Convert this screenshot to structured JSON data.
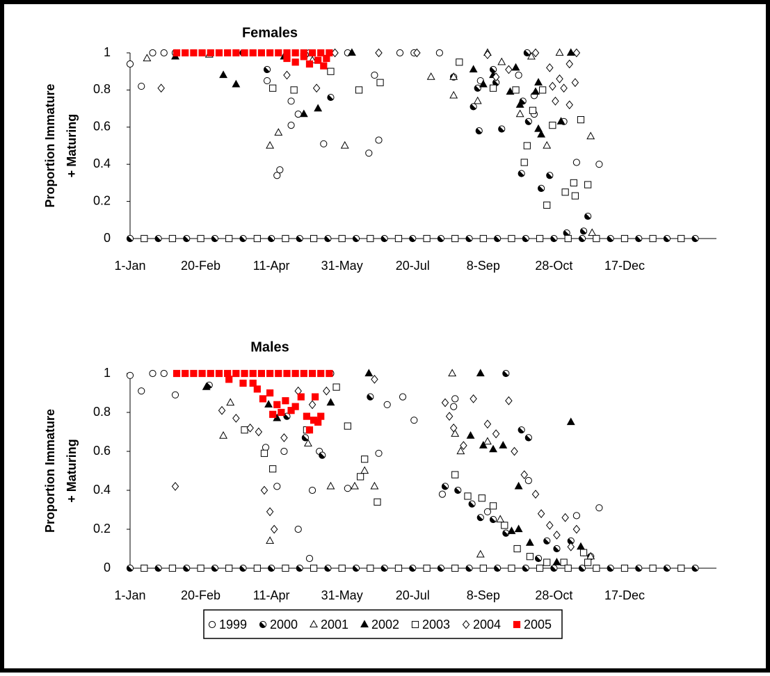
{
  "chart_data": [
    {
      "type": "scatter",
      "title": "Females",
      "ylabel": [
        "Proportion Immature",
        "+ Maturing"
      ],
      "xlim": [
        1,
        416
      ],
      "ylim": [
        0,
        1
      ],
      "yticks": [
        0,
        0.2,
        0.4,
        0.6,
        0.8,
        1
      ],
      "xticks": [
        {
          "value": 1,
          "label": "1-Jan"
        },
        {
          "value": 51,
          "label": "20-Feb"
        },
        {
          "value": 101,
          "label": "11-Apr"
        },
        {
          "value": 151,
          "label": "31-May"
        },
        {
          "value": 201,
          "label": "20-Jul"
        },
        {
          "value": 251,
          "label": "8-Sep"
        },
        {
          "value": 301,
          "label": "28-Oct"
        },
        {
          "value": 351,
          "label": "17-Dec"
        }
      ],
      "series": [
        {
          "name": "1999",
          "color": "#000000",
          "marker": "circle",
          "filled": false,
          "x": [
            1,
            9,
            17,
            25,
            33,
            98,
            105,
            107,
            115,
            115,
            120,
            138,
            170,
            177,
            174,
            192,
            202,
            220,
            249,
            276,
            287,
            287,
            308,
            317,
            333,
            128,
            155
          ],
          "y": [
            0.94,
            0.82,
            1,
            1,
            1,
            0.85,
            0.34,
            0.37,
            0.74,
            0.61,
            0.67,
            0.51,
            0.46,
            0.53,
            0.88,
            1,
            1,
            1,
            0.85,
            0.88,
            0.77,
            0.67,
            0.63,
            0.41,
            0.4,
            1,
            1
          ]
        },
        {
          "name": "2000",
          "color": "#000000",
          "marker": "half",
          "filled": true,
          "x": [
            98,
            143,
            279,
            283,
            278,
            292,
            310,
            260,
            248,
            264,
            247,
            258,
            298,
            322,
            325,
            282,
            244,
            230,
            81,
            125,
            1,
            21,
            41,
            61,
            81,
            101,
            121,
            141,
            161,
            181,
            201,
            221,
            241,
            261,
            281,
            301,
            321,
            341,
            361,
            381,
            401
          ],
          "y": [
            0.91,
            0.76,
            0.74,
            0.63,
            0.35,
            0.27,
            0.03,
            0.84,
            0.58,
            0.59,
            0.81,
            0.91,
            0.34,
            0.04,
            0.12,
            1,
            0.71,
            0.87,
            1,
            0.99,
            0,
            0,
            0,
            0,
            0,
            0,
            0,
            0,
            0,
            0,
            0,
            0,
            0,
            0,
            0,
            0,
            0,
            0,
            0,
            0,
            0
          ]
        },
        {
          "name": "2001",
          "color": "#000000",
          "marker": "triangle",
          "filled": false,
          "x": [
            13,
            100,
            106,
            153,
            230,
            247,
            277,
            296,
            327,
            230,
            254,
            264,
            305,
            328,
            57,
            130,
            214,
            285
          ],
          "y": [
            0.97,
            0.5,
            0.57,
            0.5,
            0.77,
            0.74,
            0.67,
            0.5,
            0.55,
            0.87,
            1,
            0.95,
            1,
            0.03,
            0.99,
            0.96,
            0.87,
            0.98
          ]
        },
        {
          "name": "2002",
          "color": "#000000",
          "marker": "triangle",
          "filled": true,
          "x": [
            33,
            67,
            76,
            110,
            124,
            134,
            158,
            244,
            251,
            258,
            270,
            274,
            277,
            290,
            290,
            292,
            306,
            313,
            288
          ],
          "y": [
            0.98,
            0.88,
            0.83,
            0.98,
            0.67,
            0.7,
            1,
            0.91,
            0.83,
            0.88,
            0.79,
            0.92,
            0.72,
            0.84,
            0.59,
            0.56,
            0.63,
            1,
            0.79
          ]
        },
        {
          "name": "2003",
          "color": "#000000",
          "marker": "square",
          "filled": false,
          "x": [
            102,
            117,
            143,
            163,
            178,
            234,
            258,
            274,
            282,
            280,
            286,
            293,
            296,
            309,
            315,
            316,
            320,
            325,
            300,
            11,
            31,
            51,
            71,
            91,
            111,
            131,
            151,
            171,
            191,
            211,
            231,
            251,
            271,
            291,
            311,
            331,
            351,
            371,
            391
          ],
          "y": [
            0.81,
            0.8,
            0.9,
            0.8,
            0.84,
            0.95,
            0.81,
            0.8,
            0.5,
            0.41,
            0.69,
            0.8,
            0.18,
            0.25,
            0.3,
            0.23,
            0.64,
            0.29,
            0.61,
            0,
            0,
            0,
            0,
            0,
            0,
            0,
            0,
            0,
            0,
            0,
            0,
            0,
            0,
            0,
            0,
            0,
            0,
            0,
            0
          ]
        },
        {
          "name": "2004",
          "color": "#000000",
          "marker": "diamond",
          "filled": false,
          "x": [
            23,
            112,
            133,
            146,
            177,
            204,
            254,
            260,
            269,
            288,
            298,
            300,
            305,
            312,
            317,
            308,
            316,
            302,
            312
          ],
          "y": [
            0.81,
            0.88,
            0.81,
            1,
            1,
            1,
            0.99,
            0.87,
            0.91,
            1,
            0.92,
            0.82,
            0.86,
            0.94,
            1,
            0.81,
            0.84,
            0.74,
            0.72
          ]
        },
        {
          "name": "2005",
          "color": "#ff0000",
          "marker": "square",
          "filled": true,
          "x": [
            34,
            40,
            46,
            52,
            58,
            64,
            70,
            76,
            82,
            88,
            94,
            100,
            106,
            112,
            118,
            124,
            130,
            136,
            142,
            112,
            118,
            124,
            128,
            134,
            138,
            140
          ],
          "y": [
            1,
            1,
            1,
            1,
            1,
            1,
            1,
            1,
            1,
            1,
            1,
            1,
            1,
            1,
            1,
            1,
            1,
            1,
            1,
            0.97,
            0.95,
            0.98,
            0.94,
            0.96,
            0.93,
            0.97
          ]
        }
      ]
    },
    {
      "type": "scatter",
      "title": "Males",
      "ylabel": [
        "Proportion Immature",
        "+ Maturing"
      ],
      "xlim": [
        1,
        416
      ],
      "ylim": [
        0,
        1
      ],
      "yticks": [
        0,
        0.2,
        0.4,
        0.6,
        0.8,
        1
      ],
      "xticks": [
        {
          "value": 1,
          "label": "1-Jan"
        },
        {
          "value": 51,
          "label": "20-Feb"
        },
        {
          "value": 101,
          "label": "11-Apr"
        },
        {
          "value": 151,
          "label": "31-May"
        },
        {
          "value": 201,
          "label": "20-Jul"
        },
        {
          "value": 251,
          "label": "8-Sep"
        },
        {
          "value": 301,
          "label": "28-Oct"
        },
        {
          "value": 351,
          "label": "17-Dec"
        }
      ],
      "series": [
        {
          "name": "1999",
          "color": "#000000",
          "marker": "circle",
          "filled": false,
          "x": [
            1,
            9,
            17,
            25,
            33,
            97,
            110,
            105,
            120,
            128,
            130,
            135,
            155,
            177,
            183,
            194,
            202,
            222,
            230,
            231,
            254,
            283,
            317,
            333
          ],
          "y": [
            0.99,
            0.91,
            1,
            1,
            0.89,
            0.62,
            0.6,
            0.42,
            0.2,
            0.05,
            0.4,
            0.6,
            0.41,
            0.59,
            0.84,
            0.88,
            0.76,
            0.38,
            0.83,
            0.87,
            0.29,
            0.45,
            0.27,
            0.31
          ]
        },
        {
          "name": "2000",
          "color": "#000000",
          "marker": "half",
          "filled": true,
          "x": [
            57,
            112,
            125,
            137,
            143,
            171,
            233,
            243,
            249,
            258,
            267,
            278,
            283,
            290,
            296,
            303,
            313,
            322,
            327,
            224,
            267,
            1,
            21,
            41,
            61,
            81,
            101,
            121,
            141,
            161,
            181,
            201,
            221,
            241,
            261,
            281,
            301,
            321,
            341,
            361,
            381,
            401
          ],
          "y": [
            0.94,
            0.78,
            0.67,
            0.58,
            1,
            0.88,
            0.4,
            0.33,
            0.26,
            0.25,
            0.18,
            0.71,
            0.67,
            0.05,
            0.14,
            0.1,
            0.14,
            0.08,
            0.06,
            0.42,
            1,
            0,
            0,
            0,
            0,
            0,
            0,
            0,
            0,
            0,
            0,
            0,
            0,
            0,
            0,
            0,
            0,
            0,
            0,
            0,
            0,
            0
          ]
        },
        {
          "name": "2001",
          "color": "#000000",
          "marker": "triangle",
          "filled": false,
          "x": [
            67,
            72,
            100,
            127,
            143,
            160,
            167,
            174,
            229,
            235,
            249,
            263,
            254,
            231,
            327
          ],
          "y": [
            0.68,
            0.85,
            0.14,
            0.64,
            0.42,
            0.42,
            0.5,
            0.42,
            1,
            0.6,
            0.07,
            0.25,
            0.65,
            0.69,
            0.06
          ]
        },
        {
          "name": "2002",
          "color": "#000000",
          "marker": "triangle",
          "filled": true,
          "x": [
            55,
            99,
            105,
            143,
            170,
            242,
            251,
            258,
            265,
            271,
            276,
            276,
            284,
            303,
            313,
            320,
            249
          ],
          "y": [
            0.93,
            0.84,
            0.77,
            0.85,
            1,
            0.68,
            0.63,
            0.61,
            0.63,
            0.19,
            0.42,
            0.2,
            0.13,
            0.03,
            0.75,
            0.11,
            1
          ]
        },
        {
          "name": "2003",
          "color": "#000000",
          "marker": "square",
          "filled": false,
          "x": [
            82,
            96,
            102,
            126,
            147,
            155,
            164,
            167,
            176,
            231,
            240,
            250,
            258,
            266,
            275,
            284,
            296,
            308,
            322,
            325,
            11,
            31,
            51,
            71,
            91,
            111,
            131,
            151,
            171,
            191,
            211,
            231,
            251,
            271,
            291,
            311,
            331,
            351,
            371,
            391
          ],
          "y": [
            0.71,
            0.59,
            0.51,
            0.71,
            0.93,
            0.73,
            0.47,
            0.56,
            0.34,
            0.48,
            0.37,
            0.36,
            0.32,
            0.22,
            0.1,
            0.06,
            0.03,
            0.03,
            0.08,
            0.03,
            0,
            0,
            0,
            0,
            0,
            0,
            0,
            0,
            0,
            0,
            0,
            0,
            0,
            0,
            0,
            0,
            0,
            0,
            0,
            0
          ]
        },
        {
          "name": "2004",
          "color": "#000000",
          "marker": "diamond",
          "filled": false,
          "x": [
            33,
            66,
            76,
            86,
            92,
            96,
            100,
            103,
            110,
            120,
            130,
            140,
            174,
            224,
            227,
            230,
            237,
            244,
            254,
            260,
            269,
            273,
            280,
            288,
            292,
            298,
            303,
            309,
            313,
            317
          ],
          "y": [
            0.42,
            0.81,
            0.77,
            0.72,
            0.7,
            0.4,
            0.29,
            0.2,
            0.67,
            0.91,
            0.84,
            0.91,
            0.97,
            0.85,
            0.78,
            0.72,
            0.63,
            0.87,
            0.74,
            0.69,
            0.86,
            0.6,
            0.48,
            0.38,
            0.28,
            0.22,
            0.17,
            0.26,
            0.11,
            0.2
          ]
        },
        {
          "name": "2005",
          "color": "#ff0000",
          "marker": "square",
          "filled": true,
          "x": [
            34,
            40,
            46,
            52,
            58,
            64,
            70,
            76,
            82,
            88,
            94,
            100,
            106,
            112,
            118,
            124,
            130,
            136,
            142,
            91,
            95,
            100,
            102,
            105,
            108,
            111,
            115,
            118,
            122,
            126,
            128,
            131,
            134,
            136,
            132,
            71,
            81,
            88
          ],
          "y": [
            1,
            1,
            1,
            1,
            1,
            1,
            1,
            1,
            1,
            1,
            1,
            1,
            1,
            1,
            1,
            1,
            1,
            1,
            1,
            0.92,
            0.87,
            0.9,
            0.79,
            0.84,
            0.8,
            0.86,
            0.81,
            0.83,
            0.88,
            0.78,
            0.71,
            0.76,
            0.75,
            0.78,
            0.88,
            0.97,
            0.95,
            0.95
          ]
        }
      ]
    }
  ]
}
